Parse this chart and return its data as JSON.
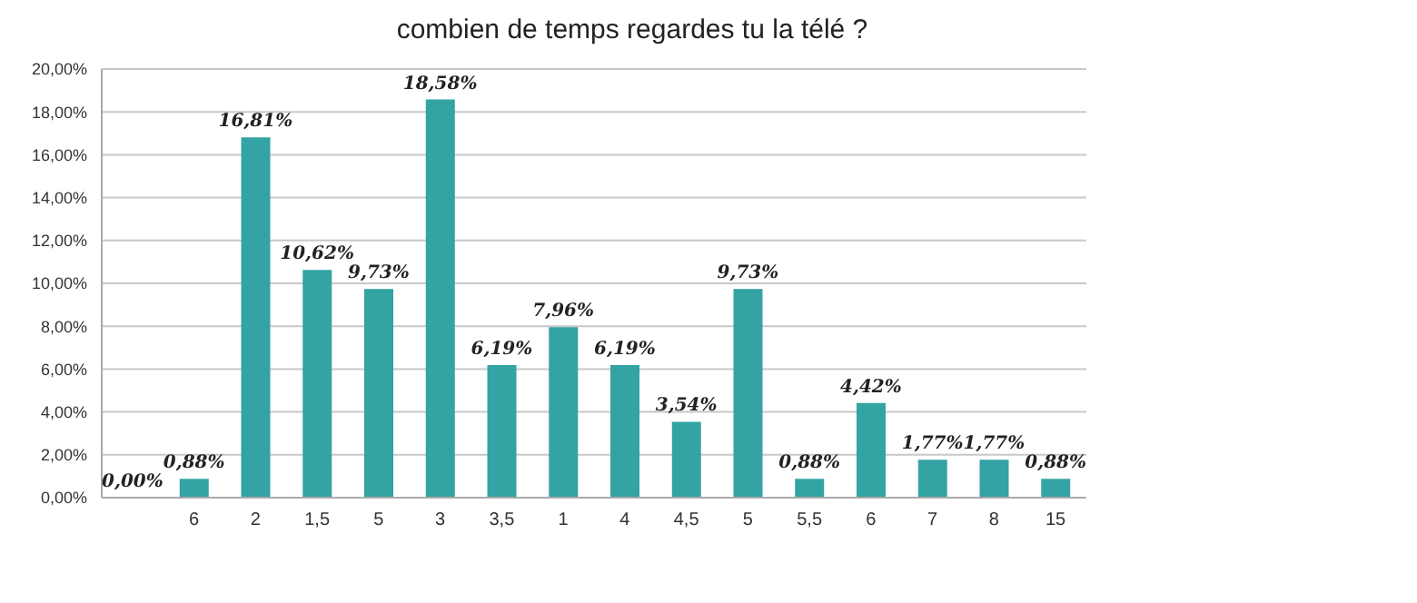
{
  "chart_data": {
    "type": "bar",
    "title": "combien de temps regardes tu la télé  ?",
    "categories": [
      null,
      "6",
      "2",
      "1,5",
      "5",
      "3",
      "3,5",
      "1",
      "4",
      "4,5",
      "5",
      "5,5",
      "6",
      "7",
      "8",
      "15"
    ],
    "values": [
      0,
      0.88,
      16.81,
      10.62,
      9.73,
      18.58,
      6.19,
      7.96,
      6.19,
      3.54,
      9.73,
      0.88,
      4.42,
      1.77,
      1.77,
      0.88
    ],
    "value_labels": [
      "0,00%",
      "0,88%",
      "16,81%",
      "10,62%",
      "9,73%",
      "18,58%",
      "6,19%",
      "7,96%",
      "6,19%",
      "3,54%",
      "9,73%",
      "0,88%",
      "4,42%",
      "1,77%",
      "1,77%",
      "0,88%"
    ],
    "color": "#33a3a3",
    "ylim": [
      0,
      20
    ],
    "yticks": [
      {
        "value": 0,
        "label": "0,00%"
      },
      {
        "value": 2,
        "label": "2,00%"
      },
      {
        "value": 4,
        "label": "4,00%"
      },
      {
        "value": 6,
        "label": "6,00%"
      },
      {
        "value": 8,
        "label": "8,00%"
      },
      {
        "value": 10,
        "label": "10,00%"
      },
      {
        "value": 12,
        "label": "12,00%"
      },
      {
        "value": 14,
        "label": "14,00%"
      },
      {
        "value": 16,
        "label": "16,00%"
      },
      {
        "value": 18,
        "label": "18,00%"
      },
      {
        "value": 20,
        "label": "20,00%"
      }
    ],
    "grid": "y",
    "legend": false
  }
}
